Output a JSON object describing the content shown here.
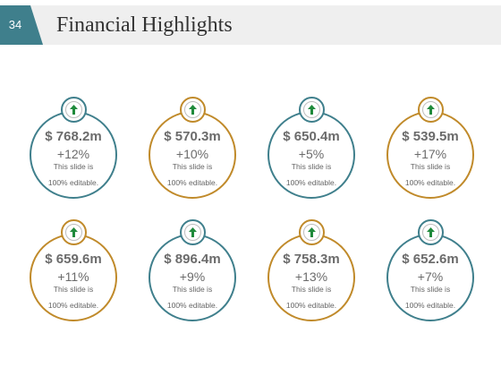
{
  "slide": {
    "number": "34",
    "title": "Financial Highlights"
  },
  "colors": {
    "teal": "#3f7f8c",
    "gold": "#c08a2a",
    "arrow_green": "#1f8a3b"
  },
  "cards": [
    {
      "amount": "$ 768.2m",
      "change": "+12%",
      "note_line1": "This slide is",
      "note_line2": "100% editable.",
      "color": "teal",
      "icon": "up-arrow"
    },
    {
      "amount": "$ 570.3m",
      "change": "+10%",
      "note_line1": "This slide is",
      "note_line2": "100% editable.",
      "color": "gold",
      "icon": "up-arrow"
    },
    {
      "amount": "$ 650.4m",
      "change": "+5%",
      "note_line1": "This slide is",
      "note_line2": "100% editable.",
      "color": "teal",
      "icon": "up-arrow"
    },
    {
      "amount": "$ 539.5m",
      "change": "+17%",
      "note_line1": "This slide is",
      "note_line2": "100% editable.",
      "color": "gold",
      "icon": "up-arrow"
    },
    {
      "amount": "$ 659.6m",
      "change": "+11%",
      "note_line1": "This slide is",
      "note_line2": "100% editable.",
      "color": "gold",
      "icon": "up-arrow"
    },
    {
      "amount": "$ 896.4m",
      "change": "+9%",
      "note_line1": "This slide is",
      "note_line2": "100% editable.",
      "color": "teal",
      "icon": "up-arrow"
    },
    {
      "amount": "$ 758.3m",
      "change": "+13%",
      "note_line1": "This slide is",
      "note_line2": "100% editable.",
      "color": "gold",
      "icon": "up-arrow"
    },
    {
      "amount": "$ 652.6m",
      "change": "+7%",
      "note_line1": "This slide is",
      "note_line2": "100% editable.",
      "color": "teal",
      "icon": "up-arrow"
    }
  ]
}
